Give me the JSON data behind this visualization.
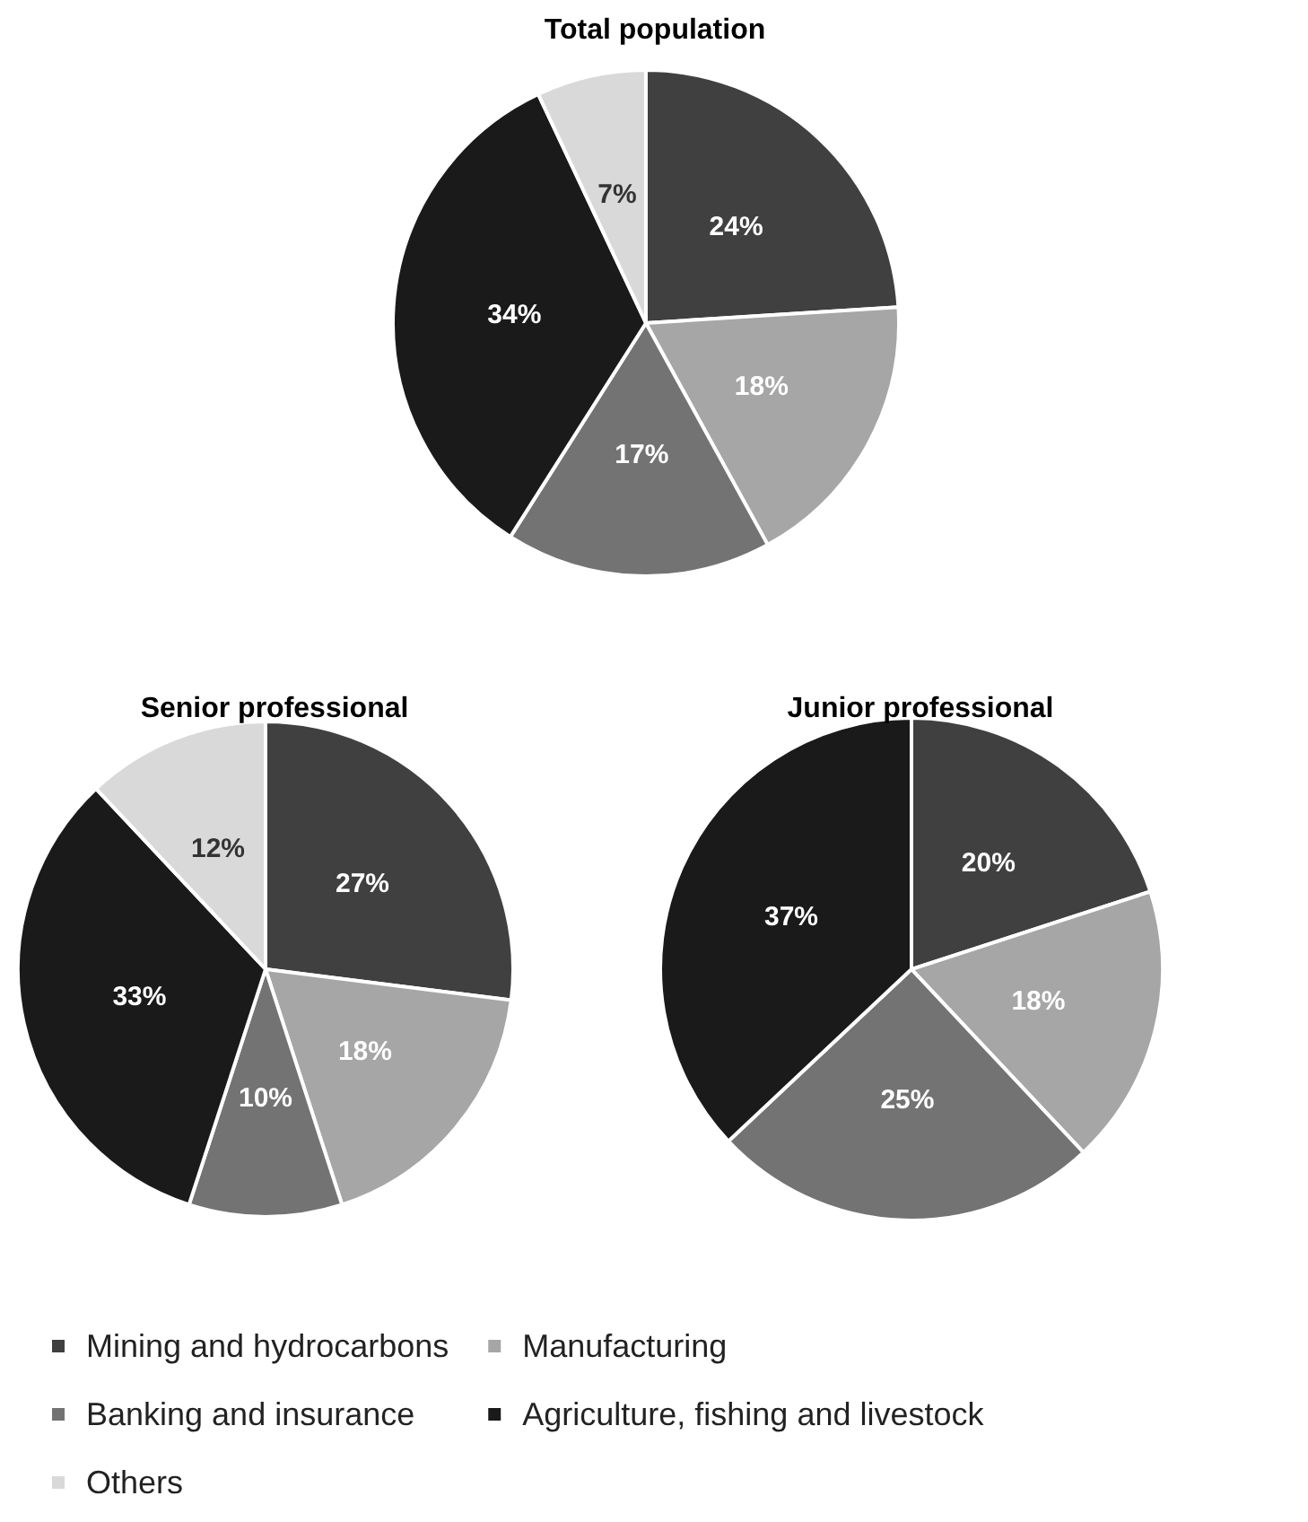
{
  "chart_data": [
    {
      "type": "pie",
      "title": "Total population",
      "categories": [
        "Mining and hydrocarbons",
        "Manufacturing",
        "Banking and insurance",
        "Agriculture, fishing and livestock",
        "Others"
      ],
      "values": [
        24,
        18,
        17,
        34,
        7
      ],
      "value_labels": [
        "24%",
        "18%",
        "17%",
        "34%",
        "7%"
      ],
      "colors": [
        "#404040",
        "#a6a6a6",
        "#737373",
        "#1a1a1a",
        "#d9d9d9"
      ],
      "legend": "bottom"
    },
    {
      "type": "pie",
      "title": "Senior professional",
      "categories": [
        null,
        null,
        null,
        null,
        null
      ],
      "values": [
        27,
        18,
        10,
        33,
        12
      ],
      "value_labels": [
        "27%",
        "18%",
        "10%",
        "33%",
        "12%"
      ],
      "colors": [
        "#404040",
        "#a6a6a6",
        "#737373",
        "#1a1a1a",
        "#d9d9d9"
      ]
    },
    {
      "type": "pie",
      "title": "Junior professional",
      "categories": [
        null,
        null,
        null,
        null
      ],
      "values": [
        20,
        18,
        25,
        37
      ],
      "value_labels": [
        "20%",
        "18%",
        "25%",
        "37%"
      ],
      "colors": [
        "#404040",
        "#a6a6a6",
        "#737373",
        "#1a1a1a"
      ]
    }
  ]
}
